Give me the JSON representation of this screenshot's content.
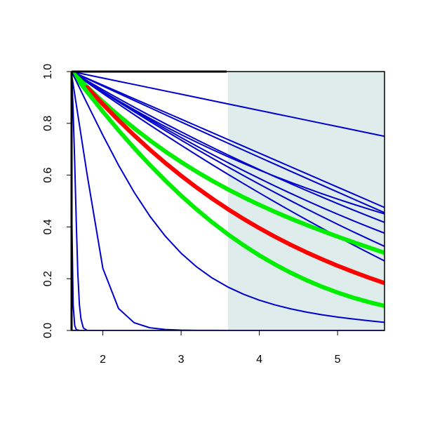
{
  "chart_data": {
    "type": "line",
    "title": "",
    "xlabel": "",
    "ylabel": "",
    "xlim": [
      1.6,
      5.6
    ],
    "ylim": [
      0,
      1
    ],
    "grid": false,
    "x_ticks": [
      2,
      3,
      4,
      5
    ],
    "y_ticks": [
      0,
      0.2,
      0.4,
      0.6,
      0.8,
      1
    ],
    "x_tick_labels": [
      "2",
      "3",
      "4",
      "5"
    ],
    "y_tick_labels": [
      "0.0",
      "0.2",
      "0.4",
      "0.6",
      "0.8",
      "1.0"
    ],
    "shaded_region": {
      "x_from": 3.6,
      "x_to": 5.6,
      "color": "#deecec"
    },
    "vertical_line": {
      "x": 1.6,
      "color": "#000000"
    },
    "x_samples": [
      1.6,
      1.8,
      2.0,
      2.2,
      2.4,
      2.6,
      2.8,
      3.0,
      3.2,
      3.4,
      3.6,
      3.8,
      4.0,
      4.2,
      4.4,
      4.6,
      4.8,
      5.0,
      5.2,
      5.4,
      5.6
    ],
    "series": [
      {
        "color": "#0000cd",
        "width": 2,
        "values": [
          1,
          0.9875,
          0.975,
          0.9625,
          0.95,
          0.9375,
          0.925,
          0.9125,
          0.9,
          0.8875,
          0.875,
          0.8625,
          0.85,
          0.8375,
          0.825,
          0.8125,
          0.8,
          0.7875,
          0.775,
          0.7625,
          0.75
        ]
      },
      {
        "color": "#0000cd",
        "width": 2,
        "values": [
          1,
          0.9738,
          0.9475,
          0.9213,
          0.895,
          0.8688,
          0.8425,
          0.8163,
          0.79,
          0.7638,
          0.7375,
          0.7113,
          0.685,
          0.6588,
          0.6325,
          0.6063,
          0.58,
          0.5538,
          0.5275,
          0.5013,
          0.475
        ]
      },
      {
        "color": "#0000cd",
        "width": 2,
        "values": [
          1,
          0.972,
          0.944,
          0.9161,
          0.8883,
          0.8607,
          0.833,
          0.8054,
          0.778,
          0.7506,
          0.7233,
          0.6962,
          0.669,
          0.642,
          0.615,
          0.5882,
          0.5614,
          0.5347,
          0.5081,
          0.4815,
          0.455
        ]
      },
      {
        "color": "#0000cd",
        "width": 2,
        "values": [
          1,
          0.9644,
          0.9297,
          0.8958,
          0.8626,
          0.8301,
          0.7983,
          0.7672,
          0.7368,
          0.707,
          0.6778,
          0.6493,
          0.6214,
          0.594,
          0.5672,
          0.541,
          0.5153,
          0.4901,
          0.4654,
          0.4412,
          0.4175
        ]
      },
      {
        "color": "#0000cd",
        "width": 2,
        "values": [
          1,
          0.9612,
          0.9232,
          0.886,
          0.8496,
          0.814,
          0.7792,
          0.7452,
          0.712,
          0.6796,
          0.648,
          0.6172,
          0.5872,
          0.558,
          0.5296,
          0.502,
          0.4752,
          0.4492,
          0.424,
          0.3996,
          0.376
        ]
      },
      {
        "color": "#0000cd",
        "width": 2,
        "values": [
          1,
          0.9609,
          0.9234,
          0.8873,
          0.8526,
          0.8193,
          0.7873,
          0.7565,
          0.7269,
          0.6985,
          0.6712,
          0.645,
          0.6197,
          0.5955,
          0.5722,
          0.5498,
          0.5283,
          0.5077,
          0.4878,
          0.4687,
          0.4504
        ]
      },
      {
        "color": "#0000cd",
        "width": 2,
        "values": [
          1,
          0.9575,
          0.9156,
          0.8744,
          0.8337,
          0.7937,
          0.7544,
          0.7156,
          0.6775,
          0.64,
          0.6031,
          0.5669,
          0.5313,
          0.4962,
          0.4619,
          0.4281,
          0.395,
          0.3625,
          0.3306,
          0.2994,
          0.2687
        ]
      },
      {
        "color": "#0000cd",
        "width": 2,
        "values": [
          1,
          0.9603,
          0.9212,
          0.8828,
          0.845,
          0.8078,
          0.7713,
          0.7353,
          0.7,
          0.6653,
          0.6313,
          0.5978,
          0.565,
          0.5328,
          0.5012,
          0.4703,
          0.44,
          0.4103,
          0.3812,
          0.3528,
          0.325
        ]
      },
      {
        "color": "#00ee00",
        "width": 6,
        "values": [
          1,
          0.9402,
          0.8837,
          0.8307,
          0.781,
          0.7346,
          0.6912,
          0.6508,
          0.6131,
          0.5779,
          0.545,
          0.5142,
          0.4853,
          0.4581,
          0.4324,
          0.4081,
          0.3849,
          0.3626,
          0.3412,
          0.3204,
          0.3
        ]
      },
      {
        "color": "#ff0000",
        "width": 6,
        "values": [
          null,
          0.9392,
          0.8739,
          0.812,
          0.7537,
          0.6986,
          0.6467,
          0.5978,
          0.5519,
          0.5088,
          0.4684,
          0.4306,
          0.3952,
          0.3621,
          0.3312,
          0.3023,
          0.2753,
          0.25,
          0.2264,
          0.2041,
          0.1833
        ]
      },
      {
        "color": "#00ee00",
        "width": 6,
        "values": [
          1,
          0.9211,
          0.8455,
          0.7734,
          0.7048,
          0.6398,
          0.5785,
          0.5209,
          0.4672,
          0.4173,
          0.3712,
          0.3289,
          0.2902,
          0.255,
          0.2232,
          0.1946,
          0.1691,
          0.1465,
          0.1267,
          0.1096,
          0.095
        ]
      },
      {
        "color": "#0000cd",
        "width": 2,
        "values": [
          1,
          0.876,
          0.7541,
          0.6387,
          0.5337,
          0.4418,
          0.3636,
          0.2985,
          0.2453,
          0.2022,
          0.1676,
          0.1397,
          0.1171,
          0.0987,
          0.0836,
          0.0711,
          0.0607,
          0.0519,
          0.0443,
          0.0376,
          0.0315
        ]
      },
      {
        "color": "#0000cd",
        "width": 2,
        "values": [
          0.99,
          0.6,
          0.24,
          0.085,
          0.03,
          0.0105,
          0.0037,
          0.0013,
          0.0005,
          0.0002,
          0.0001,
          0,
          0,
          0,
          0,
          0,
          0,
          0,
          0,
          0,
          0
        ]
      },
      {
        "color": "#0000cd",
        "width": 2,
        "values": [
          0,
          0,
          0,
          0,
          0,
          0,
          0,
          0,
          0,
          0,
          0,
          0,
          0,
          0,
          0,
          0,
          0,
          0,
          0,
          0,
          0
        ]
      }
    ],
    "steep_series": [
      {
        "color": "#0000cd",
        "width": 2,
        "points": [
          [
            1.6,
            0.5
          ],
          [
            1.61,
            0.3
          ],
          [
            1.62,
            0.1
          ],
          [
            1.64,
            0.02
          ],
          [
            1.66,
            0.003
          ],
          [
            1.7,
            0
          ],
          [
            5.6,
            0
          ]
        ]
      },
      {
        "color": "#0000cd",
        "width": 2,
        "points": [
          [
            1.6,
            1.0
          ],
          [
            1.61,
            0.93
          ],
          [
            1.62,
            0.85
          ],
          [
            1.64,
            0.65
          ],
          [
            1.66,
            0.42
          ],
          [
            1.68,
            0.22
          ],
          [
            1.7,
            0.1
          ],
          [
            1.72,
            0.045
          ],
          [
            1.75,
            0.01
          ],
          [
            1.8,
            0
          ],
          [
            5.6,
            0
          ]
        ]
      }
    ]
  }
}
